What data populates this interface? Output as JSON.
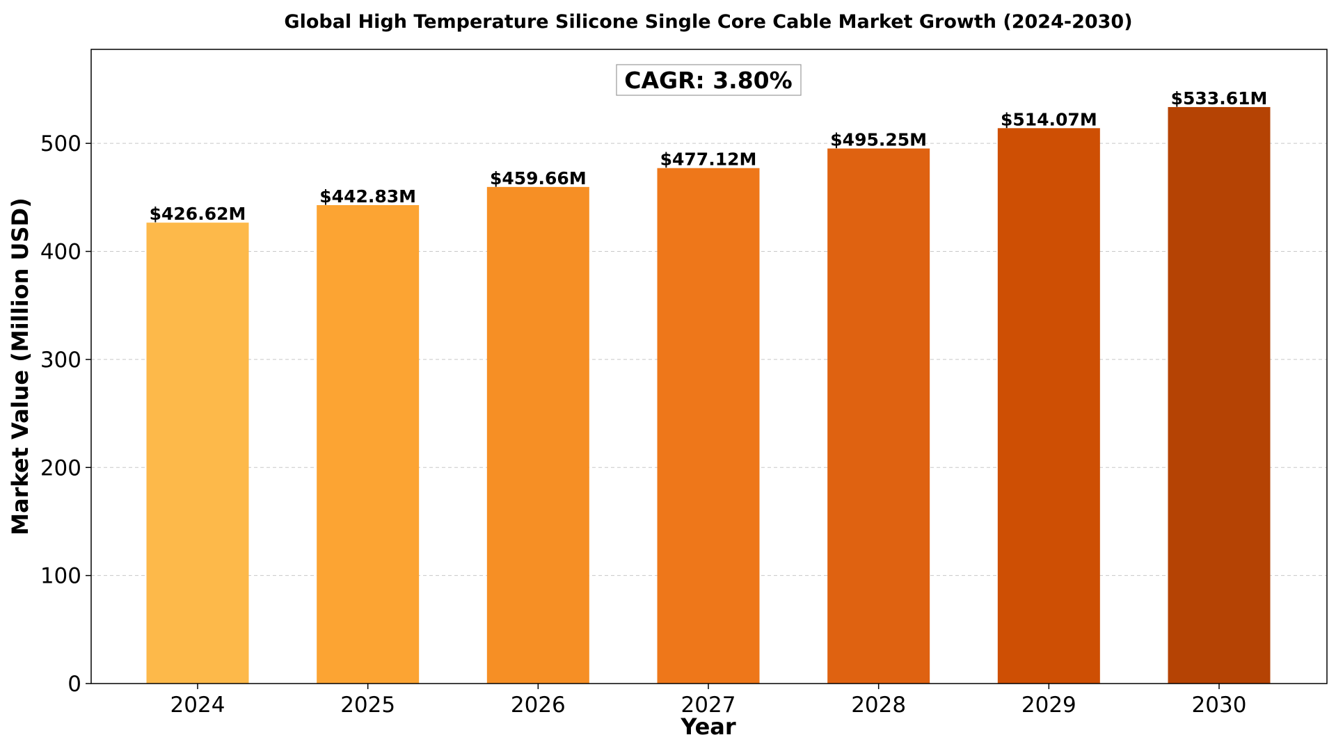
{
  "chart_data": {
    "type": "bar",
    "title": "Global High Temperature Silicone Single Core Cable Market Growth (2024-2030)",
    "xlabel": "Year",
    "ylabel": "Market Value (Million USD)",
    "categories": [
      "2024",
      "2025",
      "2026",
      "2027",
      "2028",
      "2029",
      "2030"
    ],
    "values": [
      426.62,
      442.83,
      459.66,
      477.12,
      495.25,
      514.07,
      533.61
    ],
    "value_labels": [
      "$426.62M",
      "$442.83M",
      "$459.66M",
      "$477.12M",
      "$495.25M",
      "$514.07M",
      "$533.61M"
    ],
    "colors": [
      "#FDB94A",
      "#FCA433",
      "#F68F25",
      "#EE771A",
      "#DF6211",
      "#CE4F04",
      "#B54304"
    ],
    "ylim": [
      0,
      587
    ],
    "yticks": [
      0,
      100,
      200,
      300,
      400,
      500
    ],
    "grid": "y-dashed",
    "annotation": "CAGR: 3.80%"
  }
}
